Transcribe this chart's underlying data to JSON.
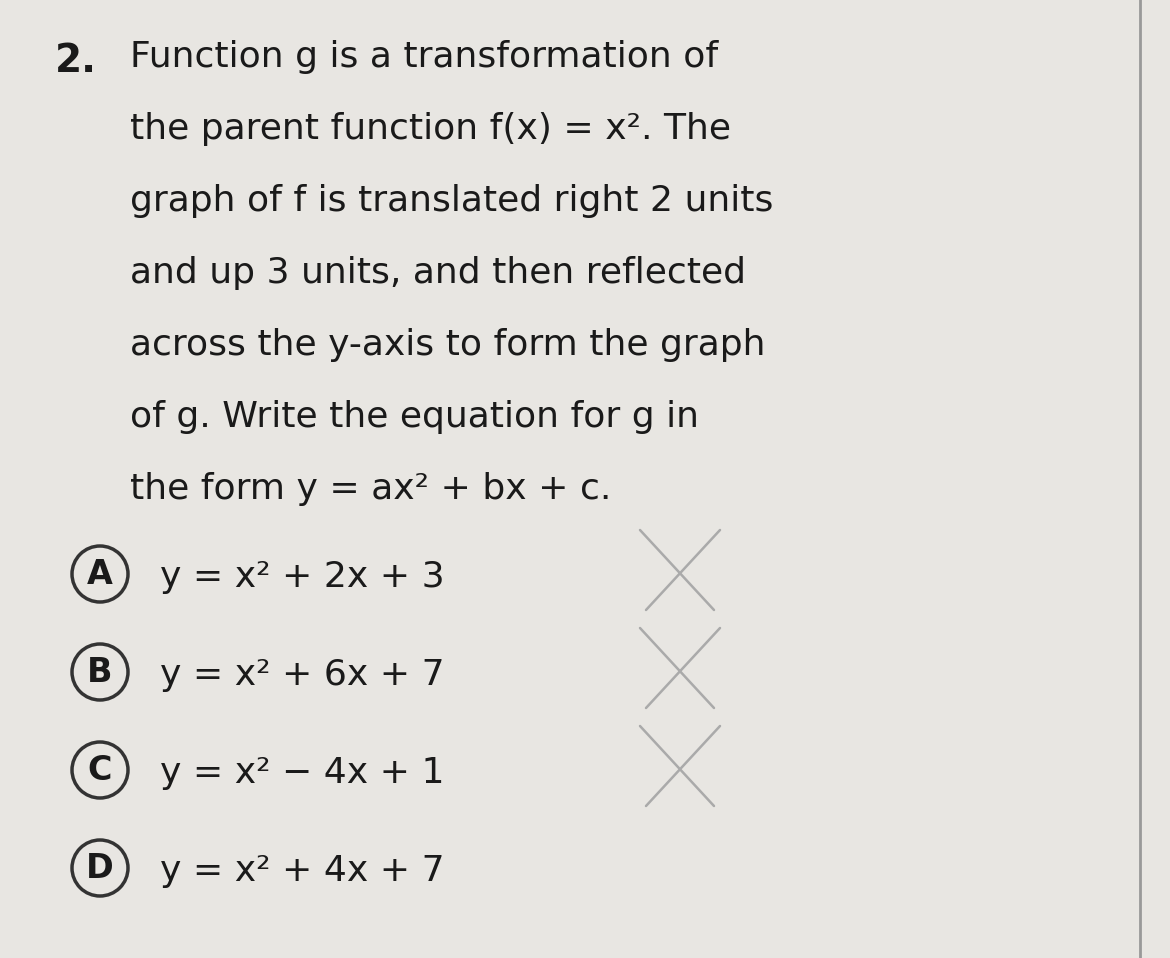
{
  "background_color": "#e8e6e2",
  "title_number": "2.",
  "question_lines": [
    "Function g is a transformation of",
    "the parent function f(x) = x². The",
    "graph of f is translated right 2 units",
    "and up 3 units, and then reflected",
    "across the y-axis to form the graph",
    "of g. Write the equation for g in",
    "the form y = ax² + bx + c."
  ],
  "options": [
    {
      "label": "A",
      "text": "y = x² + 2x + 3",
      "crossed": true
    },
    {
      "label": "B",
      "text": "y = x² + 6x + 7",
      "crossed": true
    },
    {
      "label": "C",
      "text": "y = x² − 4x + 1",
      "crossed": true
    },
    {
      "label": "D",
      "text": "y = x² + 4x + 7",
      "crossed": false
    }
  ],
  "text_color": "#1a1a1a",
  "cross_color": "#aaaaaa",
  "right_border_color": "#999999",
  "question_font_size": 26,
  "option_font_size": 26,
  "num_font_size": 28
}
